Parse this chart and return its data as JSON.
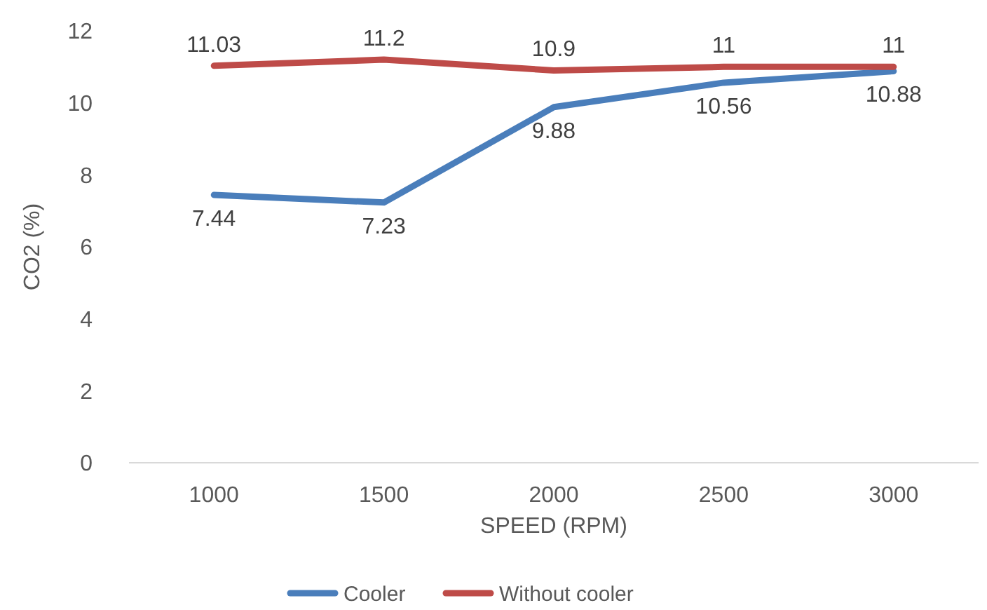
{
  "chart_data": {
    "type": "line",
    "xlabel": "SPEED (RPM)",
    "ylabel": "CO2 (%)",
    "categories": [
      "1000",
      "1500",
      "2000",
      "2500",
      "3000"
    ],
    "series": [
      {
        "name": "Cooler",
        "color": "#4a7ebb",
        "values": [
          7.44,
          7.23,
          9.88,
          10.56,
          10.88
        ]
      },
      {
        "name": "Without cooler",
        "color": "#be4b48",
        "values": [
          11.03,
          11.2,
          10.9,
          11,
          11
        ]
      }
    ],
    "ylim": [
      0,
      12
    ],
    "yticks": [
      0,
      2,
      4,
      6,
      8,
      10,
      12
    ],
    "grid": false,
    "legend": "bottom",
    "data_labels": true,
    "marker": "none",
    "line_style": "solid"
  }
}
